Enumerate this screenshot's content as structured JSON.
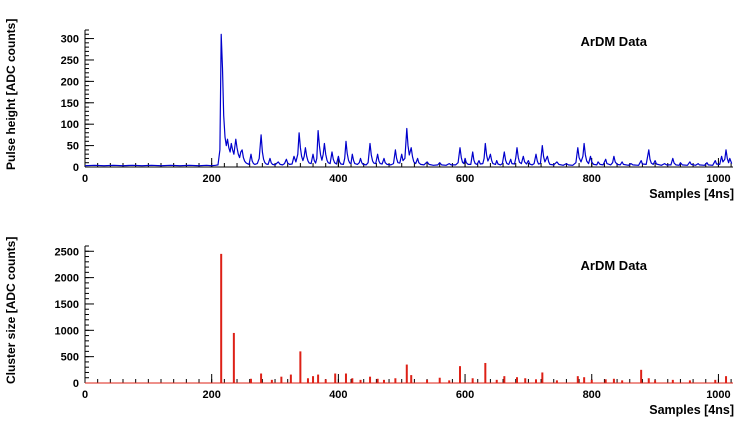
{
  "chart_data": [
    {
      "type": "line",
      "title": "",
      "annotation": "ArDM Data",
      "xlabel": "Samples [4ns]",
      "ylabel": "Pulse height [ADC counts]",
      "xlim": [
        0,
        1023
      ],
      "ylim": [
        0,
        320
      ],
      "x_major_ticks": [
        0,
        200,
        400,
        600,
        800,
        1000
      ],
      "x_minor_step": 20,
      "y_major_ticks": [
        0,
        50,
        100,
        150,
        200,
        250,
        300
      ],
      "y_minor_step": 10,
      "grid": false,
      "legend": false,
      "color": "#0000cc",
      "points": [
        [
          0,
          3
        ],
        [
          15,
          4
        ],
        [
          30,
          3
        ],
        [
          45,
          4
        ],
        [
          60,
          3
        ],
        [
          75,
          4
        ],
        [
          90,
          3
        ],
        [
          105,
          4
        ],
        [
          120,
          3
        ],
        [
          135,
          4
        ],
        [
          150,
          3
        ],
        [
          165,
          4
        ],
        [
          180,
          3
        ],
        [
          192,
          4
        ],
        [
          200,
          3
        ],
        [
          206,
          4
        ],
        [
          210,
          5
        ],
        [
          213,
          40
        ],
        [
          215,
          310
        ],
        [
          217,
          230
        ],
        [
          219,
          120
        ],
        [
          221,
          70
        ],
        [
          223,
          50
        ],
        [
          225,
          65
        ],
        [
          227,
          45
        ],
        [
          229,
          35
        ],
        [
          231,
          55
        ],
        [
          233,
          40
        ],
        [
          235,
          30
        ],
        [
          238,
          65
        ],
        [
          240,
          45
        ],
        [
          242,
          30
        ],
        [
          244,
          22
        ],
        [
          246,
          35
        ],
        [
          248,
          40
        ],
        [
          250,
          22
        ],
        [
          252,
          14
        ],
        [
          254,
          10
        ],
        [
          256,
          8
        ],
        [
          259,
          6
        ],
        [
          262,
          30
        ],
        [
          264,
          14
        ],
        [
          266,
          8
        ],
        [
          268,
          6
        ],
        [
          272,
          8
        ],
        [
          275,
          20
        ],
        [
          278,
          75
        ],
        [
          280,
          35
        ],
        [
          282,
          18
        ],
        [
          284,
          10
        ],
        [
          286,
          7
        ],
        [
          289,
          6
        ],
        [
          292,
          20
        ],
        [
          294,
          10
        ],
        [
          296,
          6
        ],
        [
          300,
          5
        ],
        [
          305,
          12
        ],
        [
          308,
          6
        ],
        [
          312,
          5
        ],
        [
          315,
          8
        ],
        [
          318,
          18
        ],
        [
          320,
          9
        ],
        [
          323,
          6
        ],
        [
          327,
          7
        ],
        [
          330,
          25
        ],
        [
          333,
          12
        ],
        [
          336,
          30
        ],
        [
          338,
          80
        ],
        [
          340,
          45
        ],
        [
          342,
          25
        ],
        [
          344,
          15
        ],
        [
          346,
          25
        ],
        [
          348,
          45
        ],
        [
          350,
          25
        ],
        [
          352,
          14
        ],
        [
          354,
          9
        ],
        [
          357,
          8
        ],
        [
          360,
          30
        ],
        [
          362,
          15
        ],
        [
          364,
          9
        ],
        [
          366,
          20
        ],
        [
          368,
          85
        ],
        [
          370,
          50
        ],
        [
          372,
          28
        ],
        [
          374,
          16
        ],
        [
          376,
          30
        ],
        [
          378,
          55
        ],
        [
          380,
          30
        ],
        [
          382,
          16
        ],
        [
          384,
          10
        ],
        [
          387,
          8
        ],
        [
          390,
          35
        ],
        [
          392,
          18
        ],
        [
          394,
          10
        ],
        [
          397,
          7
        ],
        [
          400,
          25
        ],
        [
          402,
          12
        ],
        [
          404,
          7
        ],
        [
          408,
          6
        ],
        [
          410,
          20
        ],
        [
          412,
          60
        ],
        [
          414,
          32
        ],
        [
          416,
          16
        ],
        [
          418,
          9
        ],
        [
          420,
          8
        ],
        [
          422,
          30
        ],
        [
          424,
          15
        ],
        [
          426,
          8
        ],
        [
          430,
          6
        ],
        [
          433,
          10
        ],
        [
          435,
          20
        ],
        [
          437,
          10
        ],
        [
          439,
          6
        ],
        [
          444,
          5
        ],
        [
          447,
          10
        ],
        [
          450,
          55
        ],
        [
          452,
          28
        ],
        [
          454,
          14
        ],
        [
          456,
          9
        ],
        [
          459,
          8
        ],
        [
          462,
          30
        ],
        [
          464,
          14
        ],
        [
          466,
          8
        ],
        [
          469,
          7
        ],
        [
          472,
          20
        ],
        [
          474,
          10
        ],
        [
          477,
          6
        ],
        [
          483,
          5
        ],
        [
          487,
          8
        ],
        [
          490,
          40
        ],
        [
          492,
          20
        ],
        [
          494,
          10
        ],
        [
          497,
          9
        ],
        [
          500,
          30
        ],
        [
          502,
          15
        ],
        [
          505,
          20
        ],
        [
          508,
          90
        ],
        [
          510,
          50
        ],
        [
          512,
          28
        ],
        [
          515,
          45
        ],
        [
          517,
          24
        ],
        [
          519,
          12
        ],
        [
          522,
          8
        ],
        [
          525,
          20
        ],
        [
          527,
          10
        ],
        [
          530,
          6
        ],
        [
          535,
          5
        ],
        [
          540,
          12
        ],
        [
          543,
          6
        ],
        [
          550,
          4
        ],
        [
          557,
          5
        ],
        [
          560,
          10
        ],
        [
          563,
          5
        ],
        [
          570,
          4
        ],
        [
          575,
          8
        ],
        [
          578,
          5
        ],
        [
          585,
          5
        ],
        [
          589,
          10
        ],
        [
          592,
          45
        ],
        [
          594,
          22
        ],
        [
          596,
          11
        ],
        [
          598,
          8
        ],
        [
          600,
          20
        ],
        [
          602,
          10
        ],
        [
          605,
          6
        ],
        [
          609,
          6
        ],
        [
          612,
          35
        ],
        [
          614,
          16
        ],
        [
          616,
          8
        ],
        [
          619,
          6
        ],
        [
          622,
          15
        ],
        [
          624,
          7
        ],
        [
          628,
          8
        ],
        [
          630,
          20
        ],
        [
          632,
          55
        ],
        [
          634,
          28
        ],
        [
          636,
          14
        ],
        [
          638,
          20
        ],
        [
          640,
          30
        ],
        [
          642,
          15
        ],
        [
          644,
          8
        ],
        [
          648,
          6
        ],
        [
          650,
          15
        ],
        [
          652,
          7
        ],
        [
          656,
          5
        ],
        [
          659,
          8
        ],
        [
          662,
          35
        ],
        [
          664,
          16
        ],
        [
          666,
          8
        ],
        [
          669,
          6
        ],
        [
          672,
          18
        ],
        [
          674,
          8
        ],
        [
          678,
          7
        ],
        [
          680,
          20
        ],
        [
          682,
          45
        ],
        [
          684,
          22
        ],
        [
          686,
          11
        ],
        [
          689,
          8
        ],
        [
          692,
          25
        ],
        [
          694,
          12
        ],
        [
          697,
          7
        ],
        [
          700,
          15
        ],
        [
          702,
          7
        ],
        [
          706,
          5
        ],
        [
          709,
          8
        ],
        [
          712,
          30
        ],
        [
          714,
          14
        ],
        [
          716,
          7
        ],
        [
          719,
          8
        ],
        [
          722,
          50
        ],
        [
          724,
          24
        ],
        [
          726,
          12
        ],
        [
          728,
          18
        ],
        [
          730,
          25
        ],
        [
          732,
          12
        ],
        [
          734,
          6
        ],
        [
          740,
          5
        ],
        [
          745,
          12
        ],
        [
          748,
          6
        ],
        [
          755,
          4
        ],
        [
          760,
          8
        ],
        [
          763,
          5
        ],
        [
          770,
          4
        ],
        [
          775,
          10
        ],
        [
          778,
          45
        ],
        [
          780,
          22
        ],
        [
          783,
          12
        ],
        [
          786,
          25
        ],
        [
          788,
          55
        ],
        [
          790,
          28
        ],
        [
          792,
          14
        ],
        [
          795,
          8
        ],
        [
          798,
          25
        ],
        [
          800,
          12
        ],
        [
          803,
          6
        ],
        [
          808,
          5
        ],
        [
          810,
          12
        ],
        [
          813,
          6
        ],
        [
          818,
          5
        ],
        [
          822,
          18
        ],
        [
          824,
          8
        ],
        [
          830,
          5
        ],
        [
          833,
          10
        ],
        [
          835,
          25
        ],
        [
          837,
          12
        ],
        [
          840,
          6
        ],
        [
          845,
          5
        ],
        [
          848,
          12
        ],
        [
          850,
          6
        ],
        [
          858,
          4
        ],
        [
          862,
          8
        ],
        [
          865,
          5
        ],
        [
          874,
          4
        ],
        [
          878,
          15
        ],
        [
          880,
          7
        ],
        [
          886,
          6
        ],
        [
          890,
          40
        ],
        [
          892,
          18
        ],
        [
          894,
          9
        ],
        [
          897,
          6
        ],
        [
          900,
          15
        ],
        [
          902,
          7
        ],
        [
          910,
          4
        ],
        [
          915,
          8
        ],
        [
          918,
          5
        ],
        [
          925,
          5
        ],
        [
          928,
          20
        ],
        [
          930,
          9
        ],
        [
          933,
          5
        ],
        [
          938,
          4
        ],
        [
          940,
          10
        ],
        [
          943,
          5
        ],
        [
          951,
          4
        ],
        [
          955,
          12
        ],
        [
          957,
          6
        ],
        [
          964,
          4
        ],
        [
          968,
          8
        ],
        [
          970,
          5
        ],
        [
          978,
          4
        ],
        [
          982,
          10
        ],
        [
          984,
          5
        ],
        [
          991,
          4
        ],
        [
          995,
          15
        ],
        [
          997,
          7
        ],
        [
          1002,
          6
        ],
        [
          1005,
          25
        ],
        [
          1007,
          12
        ],
        [
          1010,
          18
        ],
        [
          1012,
          40
        ],
        [
          1014,
          20
        ],
        [
          1016,
          10
        ],
        [
          1018,
          20
        ],
        [
          1021,
          8
        ]
      ]
    },
    {
      "type": "stem",
      "title": "",
      "annotation": "ArDM Data",
      "xlabel": "Samples [4ns]",
      "ylabel": "Cluster size [ADC counts]",
      "xlim": [
        0,
        1023
      ],
      "ylim": [
        0,
        2600
      ],
      "x_major_ticks": [
        0,
        200,
        400,
        600,
        800,
        1000
      ],
      "x_minor_step": 20,
      "y_major_ticks": [
        0,
        500,
        1000,
        1500,
        2000,
        2500
      ],
      "y_minor_step": 100,
      "grid": false,
      "legend": false,
      "color": "#dd2016",
      "stems": [
        [
          215,
          2450
        ],
        [
          235,
          950
        ],
        [
          262,
          80
        ],
        [
          278,
          180
        ],
        [
          295,
          60
        ],
        [
          310,
          120
        ],
        [
          325,
          160
        ],
        [
          340,
          600
        ],
        [
          352,
          90
        ],
        [
          360,
          130
        ],
        [
          368,
          160
        ],
        [
          380,
          70
        ],
        [
          395,
          180
        ],
        [
          412,
          180
        ],
        [
          422,
          90
        ],
        [
          435,
          60
        ],
        [
          450,
          120
        ],
        [
          462,
          80
        ],
        [
          472,
          60
        ],
        [
          490,
          90
        ],
        [
          508,
          350
        ],
        [
          515,
          150
        ],
        [
          540,
          60
        ],
        [
          560,
          100
        ],
        [
          575,
          50
        ],
        [
          592,
          320
        ],
        [
          612,
          90
        ],
        [
          632,
          380
        ],
        [
          650,
          60
        ],
        [
          662,
          130
        ],
        [
          682,
          110
        ],
        [
          695,
          90
        ],
        [
          712,
          70
        ],
        [
          722,
          200
        ],
        [
          745,
          50
        ],
        [
          778,
          130
        ],
        [
          788,
          110
        ],
        [
          800,
          60
        ],
        [
          822,
          70
        ],
        [
          835,
          80
        ],
        [
          848,
          50
        ],
        [
          878,
          250
        ],
        [
          890,
          90
        ],
        [
          900,
          50
        ],
        [
          928,
          60
        ],
        [
          955,
          50
        ],
        [
          995,
          60
        ],
        [
          1012,
          130
        ]
      ]
    }
  ]
}
